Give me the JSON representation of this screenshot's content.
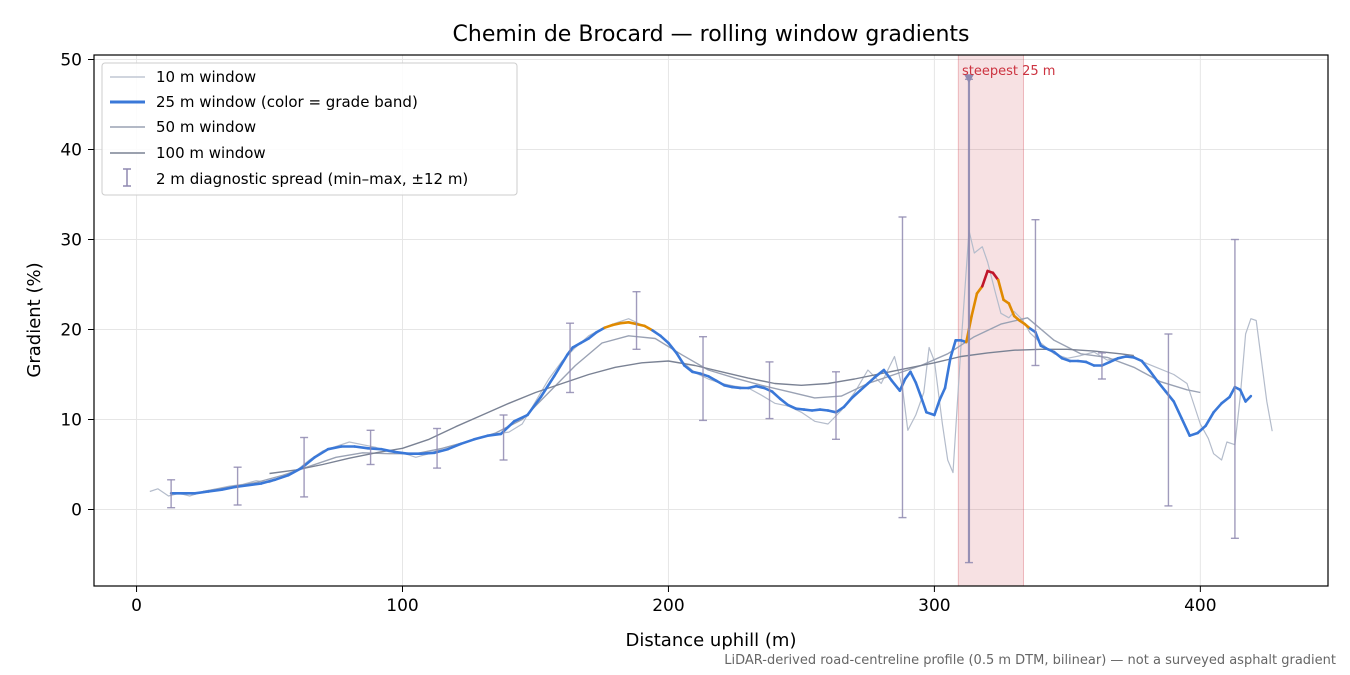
{
  "chart_data": {
    "type": "line",
    "title": "Chemin de Brocard — rolling window gradients",
    "xlabel": "Distance uphill (m)",
    "ylabel": "Gradient (%)",
    "xlim": [
      -16,
      448
    ],
    "ylim": [
      -8.5,
      50.5
    ],
    "xticks": [
      "0",
      "100",
      "200",
      "300",
      "400"
    ],
    "yticks": [
      "0",
      "10",
      "20",
      "30",
      "40",
      "50"
    ],
    "grid": true,
    "legend_position": "top-left",
    "legend": [
      "10 m window",
      "25 m window (color = grade band)",
      "50 m window",
      "100 m window",
      "2 m diagnostic spread (min–max, ±12 m)"
    ],
    "footnote": "LiDAR-derived road-centreline profile (0.5 m DTM, bilinear) — not a surveyed asphalt gradient",
    "highlight": {
      "x_range": [
        309,
        333.5
      ],
      "label": "steepest 25 m",
      "color": "#cc3340",
      "peak_x": 313,
      "peak_y": 47.8
    },
    "grade_band_colors": {
      "under_20": "#3a78d8",
      "20_to_25": "#e08a00",
      "over_25": "#c0152a"
    },
    "series": [
      {
        "name": "10 m window",
        "color": "#b4bccb",
        "width": 1.2,
        "x": [
          5,
          8,
          12,
          16,
          20,
          25,
          30,
          35,
          40,
          45,
          50,
          55,
          60,
          65,
          70,
          75,
          80,
          85,
          90,
          95,
          100,
          105,
          110,
          115,
          120,
          125,
          130,
          135,
          140,
          145,
          150,
          155,
          160,
          165,
          170,
          175,
          180,
          185,
          190,
          195,
          200,
          205,
          210,
          215,
          220,
          225,
          230,
          235,
          240,
          245,
          250,
          255,
          260,
          265,
          270,
          275,
          280,
          285,
          288,
          290,
          293,
          296,
          298,
          300,
          303,
          305,
          307,
          310,
          313,
          315,
          318,
          320,
          323,
          325,
          328,
          330,
          333,
          336,
          340,
          345,
          350,
          355,
          360,
          365,
          370,
          375,
          380,
          385,
          390,
          395,
          400,
          403,
          405,
          408,
          410,
          413,
          415,
          417,
          419,
          421,
          423,
          425,
          427
        ],
        "y": [
          2,
          2.3,
          1.5,
          1.8,
          1.5,
          2,
          2.3,
          2.6,
          2.8,
          3.2,
          3,
          3.6,
          4.3,
          5.5,
          6.5,
          7,
          7.5,
          7.2,
          6.9,
          6.4,
          6.3,
          5.8,
          6.2,
          6.8,
          7.2,
          7.6,
          8.1,
          8.4,
          8.6,
          9.5,
          12,
          14.5,
          16.5,
          18,
          19.3,
          20.1,
          20.7,
          21.2,
          20.5,
          19.8,
          18.5,
          16.5,
          15.2,
          14.5,
          14,
          13.7,
          13.5,
          12.7,
          11.8,
          11.5,
          10.8,
          9.8,
          9.5,
          11,
          13,
          15.5,
          14,
          17,
          13.5,
          8.8,
          10.5,
          13,
          18,
          16.5,
          9.5,
          5.5,
          4.1,
          18.2,
          31,
          28.5,
          29.2,
          27.5,
          24,
          21.8,
          21.3,
          22,
          21.1,
          19.6,
          18.5,
          17.3,
          16.8,
          17.1,
          17.5,
          16.6,
          16.9,
          16.9,
          16.2,
          15.6,
          15,
          14,
          9.5,
          7.9,
          6.2,
          5.5,
          7.5,
          7.2,
          12.5,
          19.5,
          21.2,
          21,
          16.5,
          12,
          8.7
        ]
      },
      {
        "name": "25 m window (color = grade band)",
        "color": "#3a78d8",
        "width": 2.6,
        "x": [
          13,
          17,
          22,
          27,
          32,
          37,
          42,
          47,
          52,
          57,
          62,
          67,
          72,
          77,
          82,
          87,
          92,
          97,
          102,
          107,
          112,
          117,
          122,
          127,
          132,
          137,
          142,
          147,
          152,
          157,
          162,
          164,
          167,
          170,
          173,
          176,
          179,
          182,
          185,
          188,
          191,
          194,
          197,
          200,
          203,
          206,
          209,
          212,
          215,
          218,
          221,
          224,
          227,
          230,
          233,
          236,
          239,
          242,
          245,
          248,
          251,
          254,
          257,
          260,
          263,
          266,
          269,
          272,
          275,
          278,
          281,
          284,
          287,
          289,
          291,
          293,
          295,
          297,
          300,
          302,
          304,
          306,
          308,
          310,
          312,
          314,
          316,
          318,
          320,
          322,
          324,
          326,
          328,
          330,
          332,
          334,
          336,
          338,
          340,
          342,
          345,
          348,
          351,
          354,
          357,
          360,
          363,
          366,
          369,
          372,
          375,
          378,
          381,
          384,
          387,
          390,
          393,
          396,
          399,
          402,
          405,
          408,
          411,
          413,
          415,
          417,
          419
        ],
        "y": [
          1.8,
          1.8,
          1.8,
          2,
          2.2,
          2.5,
          2.7,
          2.9,
          3.3,
          3.8,
          4.6,
          5.8,
          6.7,
          7,
          7,
          6.8,
          6.7,
          6.4,
          6.2,
          6.2,
          6.3,
          6.7,
          7.3,
          7.8,
          8.2,
          8.4,
          9.8,
          10.5,
          12.5,
          14.8,
          17.2,
          18,
          18.5,
          19,
          19.7,
          20.2,
          20.5,
          20.7,
          20.8,
          20.6,
          20.4,
          19.9,
          19.3,
          18.5,
          17.4,
          16,
          15.3,
          15.1,
          14.8,
          14.3,
          13.8,
          13.6,
          13.5,
          13.5,
          13.7,
          13.5,
          13.1,
          12.3,
          11.6,
          11.2,
          11.1,
          11,
          11.1,
          11,
          10.8,
          11.4,
          12.4,
          13.2,
          14,
          14.8,
          15.5,
          14.3,
          13.2,
          14.5,
          15.3,
          14.1,
          12.5,
          10.8,
          10.5,
          12.2,
          13.5,
          16.8,
          18.8,
          18.8,
          18.6,
          21.5,
          24,
          24.8,
          26.5,
          26.3,
          25.5,
          23.3,
          22.9,
          21.5,
          21,
          20.6,
          20.1,
          19.7,
          18.2,
          17.9,
          17.5,
          16.8,
          16.5,
          16.5,
          16.4,
          16,
          16,
          16.4,
          16.8,
          17,
          16.9,
          16.5,
          15.4,
          14.2,
          13.1,
          12,
          10.1,
          8.2,
          8.5,
          9.3,
          10.8,
          11.8,
          12.5,
          13.6,
          13.3,
          12,
          12.6
        ]
      },
      {
        "name": "50 m window",
        "color": "#9aa2b4",
        "width": 1.4,
        "x": [
          25,
          35,
          45,
          55,
          65,
          75,
          85,
          95,
          105,
          115,
          125,
          135,
          145,
          155,
          165,
          175,
          185,
          195,
          205,
          215,
          225,
          235,
          245,
          255,
          265,
          275,
          285,
          295,
          305,
          315,
          325,
          335,
          345,
          355,
          365,
          375,
          385,
          395,
          400
        ],
        "y": [
          2,
          2.5,
          3,
          3.8,
          4.8,
          5.8,
          6.3,
          6.2,
          6.2,
          6.8,
          7.6,
          8.5,
          10,
          13,
          16,
          18.5,
          19.3,
          19,
          17.2,
          15.5,
          14.6,
          13.8,
          13.1,
          12.4,
          12.6,
          14,
          15,
          16,
          17.3,
          19.2,
          20.6,
          21.3,
          18.8,
          17.3,
          16.9,
          15.8,
          14.2,
          13.3,
          13
        ]
      },
      {
        "name": "100 m window",
        "color": "#7a8294",
        "width": 1.4,
        "x": [
          50,
          60,
          70,
          80,
          90,
          100,
          110,
          120,
          130,
          140,
          150,
          160,
          170,
          180,
          190,
          200,
          210,
          220,
          230,
          240,
          250,
          260,
          270,
          280,
          290,
          300,
          310,
          320,
          330,
          340,
          350,
          360,
          370,
          375
        ],
        "y": [
          4,
          4.4,
          5,
          5.7,
          6.3,
          6.8,
          7.8,
          9.2,
          10.5,
          11.8,
          13,
          14,
          15,
          15.8,
          16.3,
          16.5,
          16,
          15.3,
          14.6,
          14,
          13.8,
          14,
          14.5,
          15.1,
          15.7,
          16.3,
          17,
          17.4,
          17.7,
          17.8,
          17.8,
          17.6,
          17.3,
          17.1
        ]
      }
    ],
    "error_bars": {
      "label": "2 m diagnostic spread (min–max, ±12 m)",
      "color": "#8f89b0",
      "items": [
        {
          "x": 13,
          "min": 0.2,
          "max": 3.3
        },
        {
          "x": 38,
          "min": 0.5,
          "max": 4.7
        },
        {
          "x": 63,
          "min": 1.4,
          "max": 8
        },
        {
          "x": 88,
          "min": 5,
          "max": 8.8
        },
        {
          "x": 113,
          "min": 4.6,
          "max": 9
        },
        {
          "x": 138,
          "min": 5.5,
          "max": 10.5
        },
        {
          "x": 163,
          "min": 13,
          "max": 20.7
        },
        {
          "x": 188,
          "min": 17.8,
          "max": 24.2
        },
        {
          "x": 213,
          "min": 9.9,
          "max": 19.2
        },
        {
          "x": 238,
          "min": 10.1,
          "max": 16.4
        },
        {
          "x": 263,
          "min": 7.8,
          "max": 15.3
        },
        {
          "x": 288,
          "min": -0.9,
          "max": 32.5
        },
        {
          "x": 313,
          "min": -5.9,
          "max": 47.8
        },
        {
          "x": 338,
          "min": 16,
          "max": 32.2
        },
        {
          "x": 363,
          "min": 14.5,
          "max": 17.4
        },
        {
          "x": 388,
          "min": 0.4,
          "max": 19.5
        },
        {
          "x": 413,
          "min": -3.2,
          "max": 30
        }
      ]
    }
  }
}
